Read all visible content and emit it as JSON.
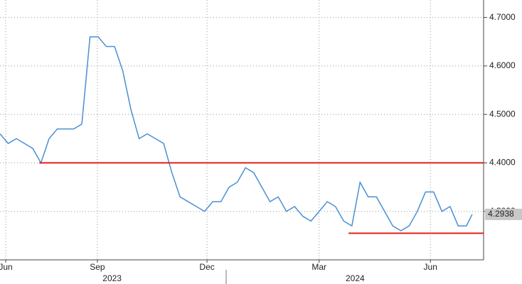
{
  "chart_data": {
    "type": "line",
    "x": [
      0,
      1,
      2,
      3,
      4,
      5,
      6,
      7,
      8,
      9,
      10,
      11,
      12,
      13,
      14,
      15,
      16,
      17,
      18,
      19,
      20,
      21,
      22,
      23,
      24,
      25,
      26,
      27,
      28,
      29,
      30,
      31,
      32,
      33,
      34,
      35,
      36,
      37,
      38,
      39,
      40,
      41,
      42,
      43,
      44,
      45,
      46,
      47,
      48,
      49,
      50,
      51,
      52,
      53,
      54,
      55,
      56,
      57,
      57.7
    ],
    "series": [
      {
        "color": "#4a8fd4",
        "values": [
          4.46,
          4.44,
          4.45,
          4.44,
          4.43,
          4.4,
          4.45,
          4.47,
          4.47,
          4.47,
          4.48,
          4.66,
          4.66,
          4.64,
          4.64,
          4.59,
          4.51,
          4.45,
          4.46,
          4.45,
          4.44,
          4.38,
          4.33,
          4.32,
          4.31,
          4.3,
          4.32,
          4.32,
          4.35,
          4.36,
          4.39,
          4.38,
          4.35,
          4.32,
          4.33,
          4.3,
          4.31,
          4.29,
          4.28,
          4.3,
          4.32,
          4.31,
          4.28,
          4.27,
          4.36,
          4.33,
          4.33,
          4.3,
          4.27,
          4.26,
          4.27,
          4.3,
          4.34,
          4.34,
          4.3,
          4.31,
          4.27,
          4.27,
          4.2938
        ]
      }
    ],
    "xlim": [
      0,
      59.1
    ],
    "xticks": [
      {
        "value": 0.7,
        "label": "Jun"
      },
      {
        "value": 11.9,
        "label": "Sep"
      },
      {
        "value": 25.3,
        "label": "Dec"
      },
      {
        "value": 39,
        "label": "Mar"
      },
      {
        "value": 52.6,
        "label": "Jun"
      }
    ],
    "year_ticks": [
      {
        "value": 13.7,
        "label": "2023"
      },
      {
        "value": 43.4,
        "label": "2024"
      }
    ],
    "ylim": [
      4.2,
      4.736
    ],
    "yticks": [
      {
        "value": 4.3,
        "label": "4.3000"
      },
      {
        "value": 4.4,
        "label": "4.4000"
      },
      {
        "value": 4.5,
        "label": "4.5000"
      },
      {
        "value": 4.6,
        "label": "4.6000"
      },
      {
        "value": 4.7,
        "label": "4.7000"
      }
    ],
    "reference_lines": [
      {
        "value": 4.4,
        "x_start": 4.8,
        "color": "#e0201b"
      },
      {
        "value": 4.255,
        "x_start": 42.6,
        "color": "#e0201b"
      }
    ],
    "last_price": {
      "value": 4.2938,
      "label": "4.2938"
    },
    "grid": true
  }
}
